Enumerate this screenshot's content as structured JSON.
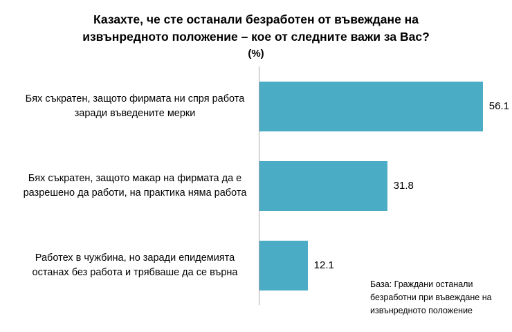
{
  "chart_data": {
    "type": "bar",
    "orientation": "horizontal",
    "title_line1": "Казахте, че сте останали безработен от въвеждане на",
    "title_line2": "извънредното положение – кое от следните важи за Вас?",
    "unit_label": "(%)",
    "categories": [
      "Бях съкратен, защото фирмата ни спря работа заради въведените мерки",
      "Бях съкратен, защото макар на фирмата да е разрешено да работи, на практика няма работа",
      "Работех в чужбина, но заради епидемията останах без работа и трябваше да се върна"
    ],
    "values": [
      56.1,
      31.8,
      12.1
    ],
    "xlim": [
      0,
      62
    ],
    "bar_color": "#4BACC6",
    "grid": false,
    "legend": "none",
    "note": "База: Граждани останали безработни при въвеждане на извънредното положение"
  }
}
